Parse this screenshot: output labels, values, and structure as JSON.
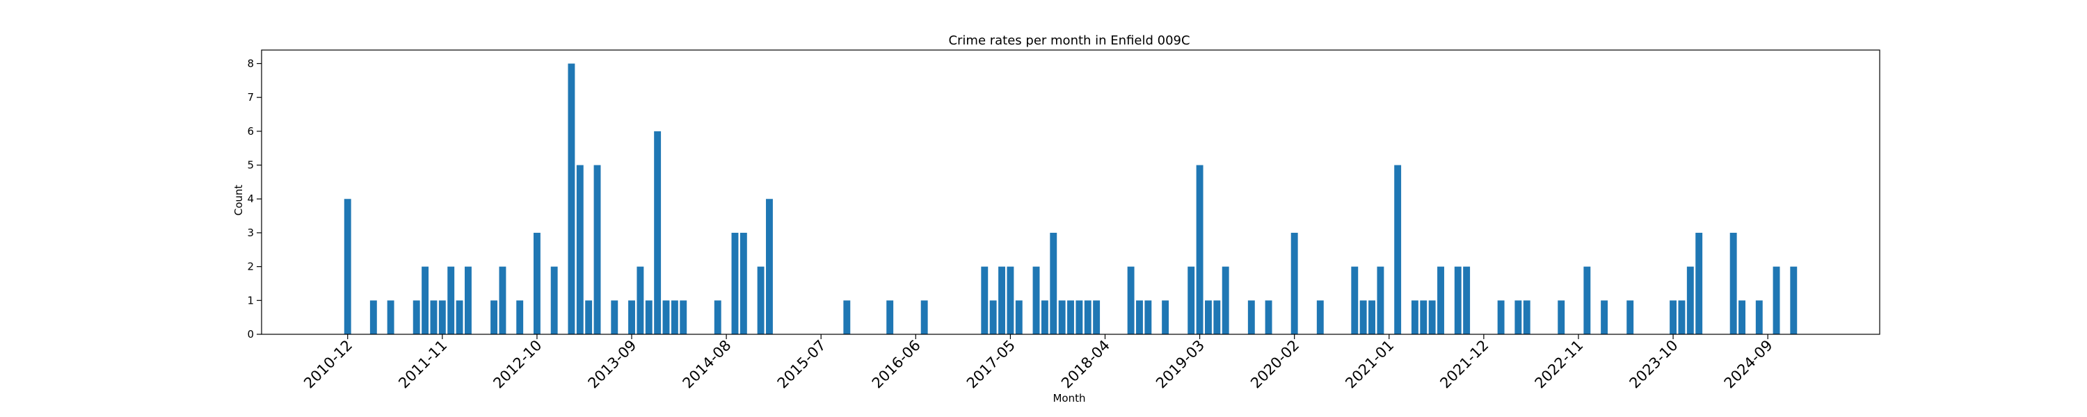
{
  "chart_data": {
    "type": "bar",
    "title": "Crime rates per month in Enfield 009C",
    "xlabel": "Month",
    "ylabel": "Count",
    "ylim": [
      0,
      8.4
    ],
    "yticks": [
      0,
      1,
      2,
      3,
      4,
      5,
      6,
      7,
      8
    ],
    "xticks": [
      "2010-12",
      "2011-11",
      "2012-10",
      "2013-09",
      "2014-08",
      "2015-07",
      "2016-06",
      "2017-05",
      "2018-04",
      "2019-03",
      "2020-02",
      "2021-01",
      "2021-12",
      "2022-11",
      "2023-10",
      "2024-09"
    ],
    "bar_color": "#1f77b4",
    "grid": false,
    "categories": [
      "2010-12",
      "2011-03",
      "2011-05",
      "2011-08",
      "2011-09",
      "2011-10",
      "2011-11",
      "2011-12",
      "2012-01",
      "2012-02",
      "2012-05",
      "2012-06",
      "2012-08",
      "2012-10",
      "2012-12",
      "2013-02",
      "2013-03",
      "2013-04",
      "2013-05",
      "2013-07",
      "2013-09",
      "2013-10",
      "2013-11",
      "2013-12",
      "2014-01",
      "2014-02",
      "2014-03",
      "2014-07",
      "2014-09",
      "2014-10",
      "2014-12",
      "2015-01",
      "2015-10",
      "2016-03",
      "2016-07",
      "2017-02",
      "2017-03",
      "2017-04",
      "2017-05",
      "2017-06",
      "2017-08",
      "2017-09",
      "2017-10",
      "2017-11",
      "2017-12",
      "2018-01",
      "2018-02",
      "2018-03",
      "2018-07",
      "2018-08",
      "2018-09",
      "2018-11",
      "2019-02",
      "2019-03",
      "2019-04",
      "2019-05",
      "2019-06",
      "2019-09",
      "2019-11",
      "2020-02",
      "2020-05",
      "2020-09",
      "2020-10",
      "2020-11",
      "2020-12",
      "2021-02",
      "2021-04",
      "2021-05",
      "2021-06",
      "2021-07",
      "2021-09",
      "2021-10",
      "2022-02",
      "2022-04",
      "2022-05",
      "2022-09",
      "2022-12",
      "2023-02",
      "2023-05",
      "2023-10",
      "2023-11",
      "2023-12",
      "2024-01",
      "2024-05",
      "2024-06",
      "2024-08",
      "2024-10",
      "2024-12"
    ],
    "values": [
      4,
      1,
      1,
      1,
      2,
      1,
      1,
      2,
      1,
      2,
      1,
      2,
      1,
      3,
      2,
      8,
      5,
      1,
      5,
      1,
      1,
      2,
      1,
      6,
      1,
      1,
      1,
      1,
      3,
      3,
      2,
      4,
      1,
      1,
      1,
      2,
      1,
      2,
      2,
      1,
      2,
      1,
      3,
      1,
      1,
      1,
      1,
      1,
      2,
      1,
      1,
      1,
      2,
      5,
      1,
      1,
      2,
      1,
      1,
      3,
      1,
      2,
      1,
      1,
      2,
      5,
      1,
      1,
      1,
      2,
      2,
      2,
      1,
      1,
      1,
      1,
      2,
      1,
      1,
      1,
      1,
      2,
      3,
      3,
      1,
      1,
      2,
      2
    ]
  }
}
